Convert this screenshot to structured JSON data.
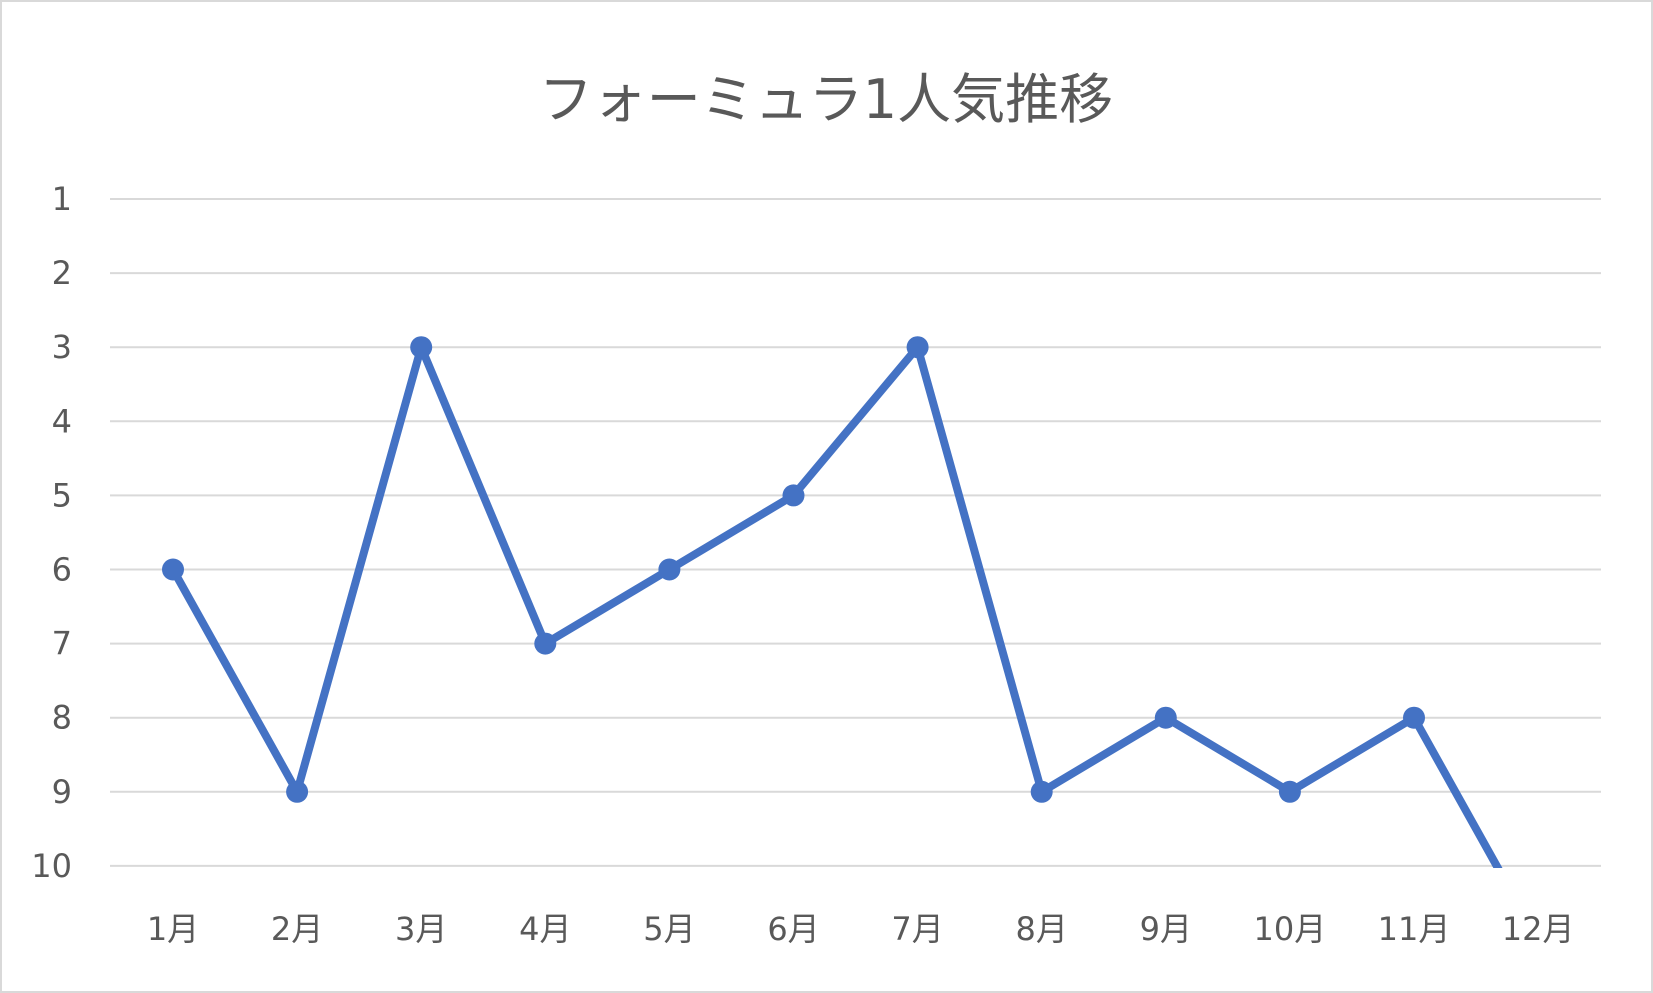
{
  "chart_data": {
    "type": "line",
    "title": "フォーミュラ1人気推移",
    "xlabel": "",
    "ylabel": "",
    "categories": [
      "1月",
      "2月",
      "3月",
      "4月",
      "5月",
      "6月",
      "7月",
      "8月",
      "9月",
      "10月",
      "11月",
      "12月"
    ],
    "y_ticks": [
      "1",
      "2",
      "3",
      "4",
      "5",
      "6",
      "7",
      "8",
      "9",
      "10"
    ],
    "ylim": [
      1,
      10
    ],
    "y_reversed": true,
    "grid": true,
    "legend": "none",
    "series": [
      {
        "values": [
          6,
          9,
          3,
          7,
          6,
          5,
          3,
          9,
          8,
          9,
          8,
          11
        ],
        "color": "#4472c4",
        "markers": true,
        "marker_on_last_point": false
      }
    ]
  }
}
